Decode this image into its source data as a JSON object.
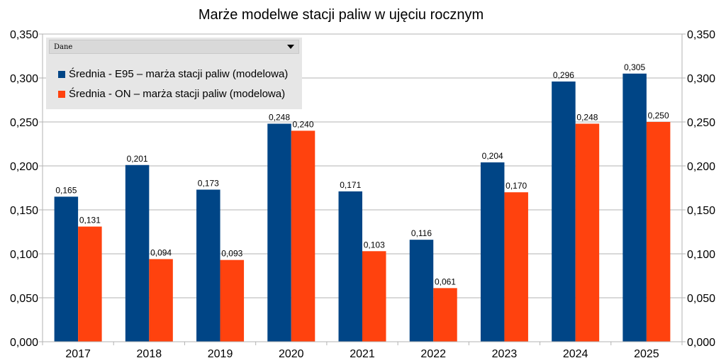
{
  "chart_data": {
    "type": "bar",
    "title": "Marże modelwe stacji paliw w ujęciu rocznym",
    "categories": [
      "2017",
      "2018",
      "2019",
      "2020",
      "2021",
      "2022",
      "2023",
      "2024",
      "2025"
    ],
    "series": [
      {
        "name": "Średnia - E95 – marża stacji paliw (modelowa)",
        "color": "#004586",
        "values": [
          0.165,
          0.201,
          0.173,
          0.248,
          0.171,
          0.116,
          0.204,
          0.296,
          0.305
        ],
        "labels": [
          "0,165",
          "0,201",
          "0,173",
          "0,248",
          "0,171",
          "0,116",
          "0,204",
          "0,296",
          "0,305"
        ]
      },
      {
        "name": "Średnia - ON – marża stacji paliw (modelowa)",
        "color": "#ff420e",
        "values": [
          0.131,
          0.094,
          0.093,
          0.24,
          0.103,
          0.061,
          0.17,
          0.248,
          0.25
        ],
        "labels": [
          "0,131",
          "0,094",
          "0,093",
          "0,240",
          "0,103",
          "0,061",
          "0,170",
          "0,248",
          "0,250"
        ]
      }
    ],
    "ylim": [
      0,
      0.35
    ],
    "yticks": [
      0,
      0.05,
      0.1,
      0.15,
      0.2,
      0.25,
      0.3,
      0.35
    ],
    "ytick_labels": [
      "0,000",
      "0,050",
      "0,100",
      "0,150",
      "0,200",
      "0,250",
      "0,300",
      "0,350"
    ],
    "secondary_y_axis": true,
    "grid": true,
    "grid_color": "#b3b3b3",
    "legend": {
      "placement": "top-left",
      "dropdown_label": "Dane",
      "background": "#e6e6e6"
    }
  }
}
